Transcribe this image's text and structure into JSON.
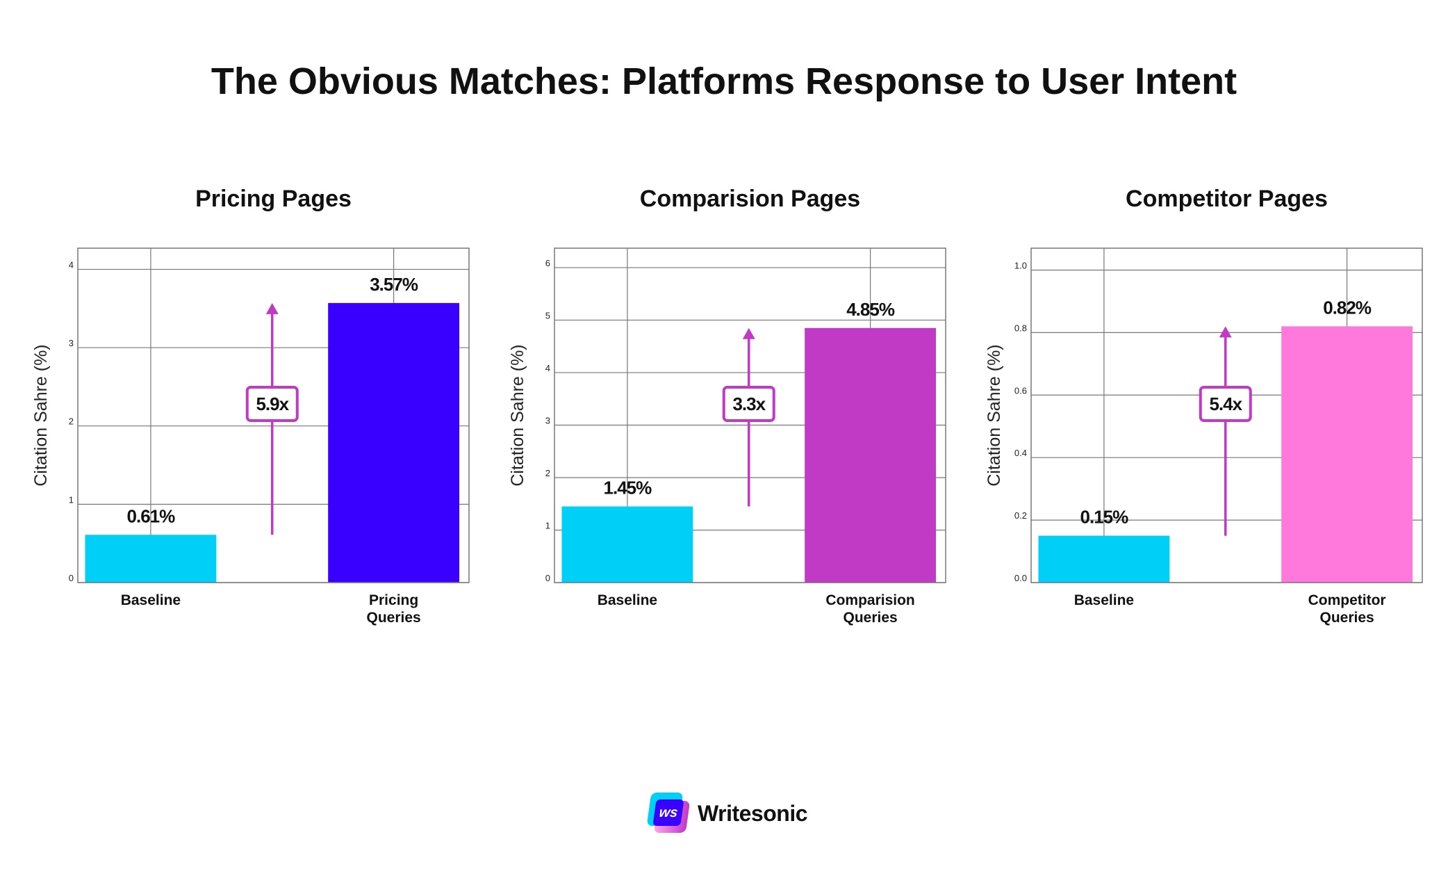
{
  "title": "The Obvious Matches: Platforms Response to User Intent",
  "brand": {
    "logo_mark": "ws",
    "name": "Writesonic"
  },
  "colors": {
    "baseline": "#00CFF8",
    "arrow": "#C03AC6",
    "grid": "#777777"
  },
  "chart_data": [
    {
      "type": "bar",
      "title": "Pricing Pages",
      "ylabel": "Citation Sahre (%)",
      "xlabel": "",
      "categories": [
        "Baseline",
        "Pricing\nQueries"
      ],
      "values": [
        0.61,
        3.57
      ],
      "data_labels": [
        "0.61%",
        "3.57%"
      ],
      "bar_colors": [
        "#00CFF8",
        "#3A00FF"
      ],
      "ylim": [
        0,
        4.27
      ],
      "yticks": [
        0,
        1,
        2,
        3,
        4
      ],
      "ytick_labels": [
        "0",
        "1",
        "2",
        "3",
        "4"
      ],
      "multiplier": "5.9x",
      "grid": true
    },
    {
      "type": "bar",
      "title": "Comparision Pages",
      "ylabel": "Citation Sahre (%)",
      "xlabel": "",
      "categories": [
        "Baseline",
        "Comparision\nQueries"
      ],
      "values": [
        1.45,
        4.85
      ],
      "data_labels": [
        "1.45%",
        "4.85%"
      ],
      "bar_colors": [
        "#00CFF8",
        "#C03AC6"
      ],
      "ylim": [
        0,
        6.37
      ],
      "yticks": [
        0,
        1,
        2,
        3,
        4,
        5,
        6
      ],
      "ytick_labels": [
        "0",
        "1",
        "2",
        "3",
        "4",
        "5",
        "6"
      ],
      "multiplier": "3.3x",
      "grid": true
    },
    {
      "type": "bar",
      "title": "Competitor Pages",
      "ylabel": "Citation Sahre (%)",
      "xlabel": "",
      "categories": [
        "Baseline",
        "Competitor\nQueries"
      ],
      "values": [
        0.15,
        0.82
      ],
      "data_labels": [
        "0.15%",
        "0.82%"
      ],
      "bar_colors": [
        "#00CFF8",
        "#FF78DC"
      ],
      "ylim": [
        0,
        1.07
      ],
      "yticks": [
        0,
        0.2,
        0.4,
        0.6,
        0.8,
        1.0
      ],
      "ytick_labels": [
        "0.0",
        "0.2",
        "0.4",
        "0.6",
        "0.8",
        "1.0"
      ],
      "multiplier": "5.4x",
      "grid": true
    }
  ]
}
